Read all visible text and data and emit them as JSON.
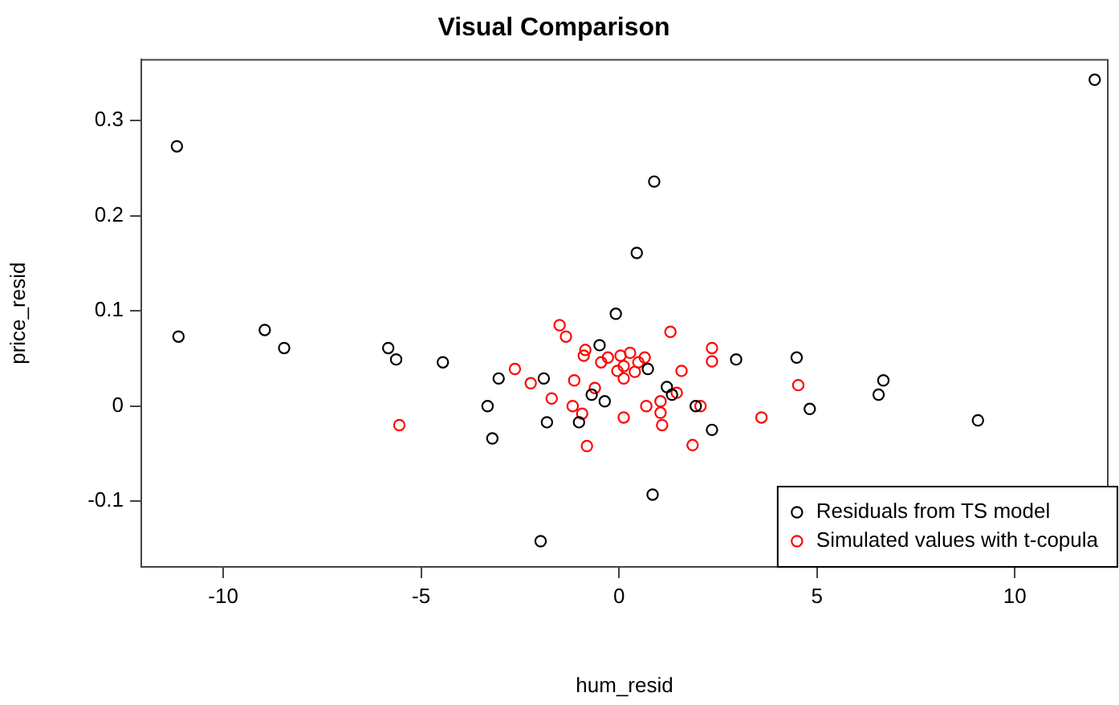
{
  "chart_data": {
    "type": "scatter",
    "title": "Visual Comparison",
    "xlabel": "hum_resid",
    "ylabel": "price_resid",
    "xlim": [
      -12.07,
      12.35
    ],
    "ylim": [
      -0.169,
      0.364
    ],
    "xticks": [
      -10,
      -5,
      0,
      5,
      10
    ],
    "yticks": [
      -0.1,
      0.0,
      0.1,
      0.2,
      0.3
    ],
    "grid": false,
    "legend": "bottom right",
    "marker": "circle",
    "series": [
      {
        "name": "Residuals from TS model",
        "color": "#000000",
        "x": [
          -11.17,
          -11.13,
          -8.95,
          -8.46,
          -5.83,
          -5.63,
          -4.45,
          -3.04,
          -3.32,
          -3.2,
          -1.9,
          -1.82,
          -1.98,
          -1.01,
          -0.69,
          -0.36,
          -0.49,
          -0.08,
          0.89,
          0.45,
          12.02,
          0.73,
          1.21,
          1.34,
          1.94,
          2.35,
          2.96,
          4.49,
          4.82,
          9.07,
          0.85,
          6.56,
          6.68
        ],
        "values": [
          0.273,
          0.073,
          0.08,
          0.061,
          0.061,
          0.049,
          0.046,
          0.029,
          0.0,
          -0.034,
          0.029,
          -0.017,
          -0.142,
          -0.017,
          0.012,
          0.005,
          0.064,
          0.097,
          0.236,
          0.161,
          0.343,
          0.039,
          0.02,
          0.012,
          0.0,
          -0.025,
          0.049,
          0.051,
          -0.003,
          -0.015,
          -0.093,
          0.012,
          0.027
        ]
      },
      {
        "name": "Simulated values with t-copula",
        "color": "#ff0000",
        "x": [
          -1.5,
          -1.34,
          -0.85,
          -0.89,
          -0.45,
          -0.28,
          0.04,
          0.28,
          0.49,
          0.65,
          -0.04,
          0.12,
          0.4,
          0.12,
          1.3,
          1.58,
          2.35,
          2.35,
          -2.63,
          -2.23,
          -1.7,
          -1.13,
          -0.61,
          -1.17,
          -0.93,
          -0.81,
          0.12,
          0.69,
          1.05,
          1.46,
          1.05,
          1.09,
          2.06,
          1.86,
          3.6,
          4.53,
          -5.55
        ],
        "values": [
          0.085,
          0.073,
          0.059,
          0.053,
          0.046,
          0.051,
          0.053,
          0.056,
          0.046,
          0.051,
          0.037,
          0.042,
          0.036,
          0.029,
          0.078,
          0.037,
          0.061,
          0.047,
          0.039,
          0.024,
          0.008,
          0.027,
          0.019,
          0.0,
          -0.008,
          -0.042,
          -0.012,
          0.0,
          0.005,
          0.014,
          -0.007,
          -0.02,
          0.0,
          -0.041,
          -0.012,
          0.022,
          -0.02
        ]
      }
    ]
  }
}
